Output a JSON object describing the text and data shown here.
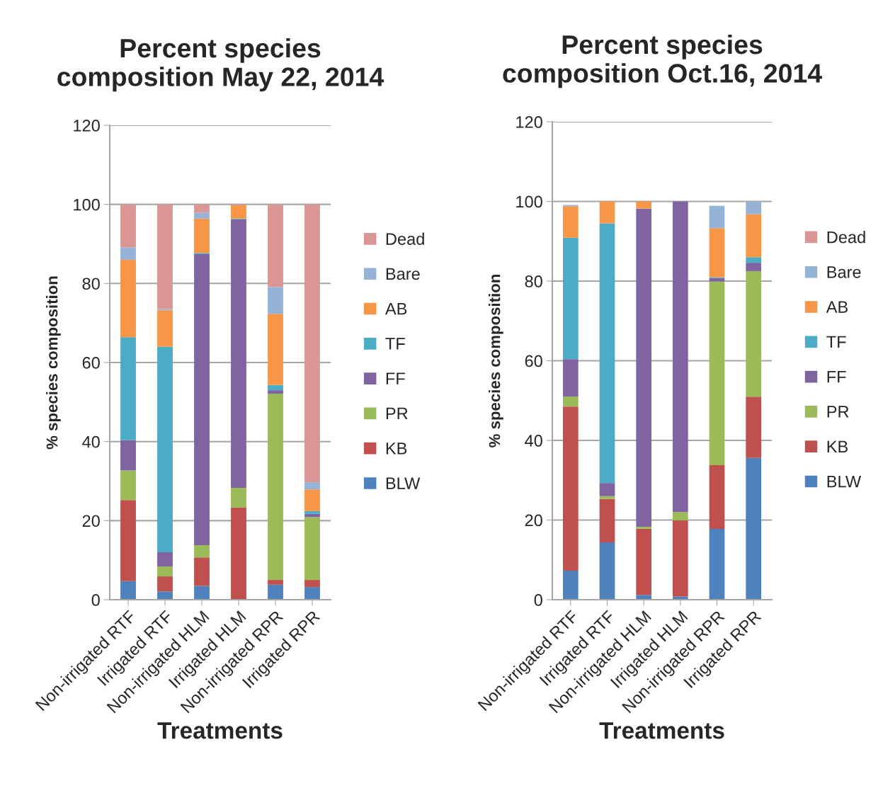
{
  "chart_data": [
    {
      "type": "bar",
      "stacked": true,
      "title": "Percent species\ncomposition May 22, 2014",
      "xlabel": "Treatments",
      "ylabel": "% species composition",
      "categories": [
        "Non-irrigated RTF",
        "Irrigated RTF",
        "Non-irrigated HLM",
        "Irrigated HLM",
        "Non-irrigated RPR",
        "Irrigated RPR"
      ],
      "ylim": [
        0,
        120
      ],
      "yticks": [
        0,
        20,
        40,
        60,
        80,
        100,
        120
      ],
      "grid": "y",
      "legend": "right",
      "series": [
        {
          "name": "BLW",
          "color": "#4f81bd",
          "values": [
            4.7,
            2.1,
            3.5,
            0,
            3.8,
            3.2
          ]
        },
        {
          "name": "KB",
          "color": "#c0504d",
          "values": [
            20.5,
            3.8,
            7.2,
            23.3,
            1.2,
            1.8
          ]
        },
        {
          "name": "PR",
          "color": "#9bbb59",
          "values": [
            7.5,
            2.5,
            3.1,
            5.0,
            47.1,
            15.9
          ]
        },
        {
          "name": "FF",
          "color": "#8064a2",
          "values": [
            7.7,
            3.6,
            73.6,
            67.9,
            0.9,
            0.8
          ]
        },
        {
          "name": "TF",
          "color": "#4bacc6",
          "values": [
            26.0,
            52.0,
            0.3,
            0.2,
            1.3,
            0.7
          ]
        },
        {
          "name": "AB",
          "color": "#f79646",
          "values": [
            19.6,
            9.2,
            8.7,
            3.4,
            18.0,
            5.5
          ]
        },
        {
          "name": "Bare",
          "color": "#95b3d7",
          "values": [
            3.1,
            0.3,
            1.5,
            0,
            6.8,
            1.8
          ]
        },
        {
          "name": "Dead",
          "color": "#d99694",
          "values": [
            10.9,
            26.5,
            2.1,
            0.2,
            20.9,
            70.3
          ]
        }
      ]
    },
    {
      "type": "bar",
      "stacked": true,
      "title": "Percent species\ncomposition Oct.16, 2014",
      "xlabel": "Treatments",
      "ylabel": "% species composition",
      "categories": [
        "Non-irrigated RTF",
        "Irrigated RTF",
        "Non-irrigated HLM",
        "Irrigated HLM",
        "Non-irrigated RPR",
        "Irrigated RPR"
      ],
      "ylim": [
        0,
        120
      ],
      "yticks": [
        0,
        20,
        40,
        60,
        80,
        100,
        120
      ],
      "grid": "y",
      "legend": "right",
      "series": [
        {
          "name": "BLW",
          "color": "#4f81bd",
          "values": [
            7.3,
            14.4,
            1.2,
            0.8,
            17.8,
            35.6
          ]
        },
        {
          "name": "KB",
          "color": "#c0504d",
          "values": [
            41.2,
            10.9,
            16.6,
            19.1,
            16.0,
            15.4
          ]
        },
        {
          "name": "PR",
          "color": "#9bbb59",
          "values": [
            2.5,
            0.7,
            0.5,
            2.1,
            46.1,
            31.5
          ]
        },
        {
          "name": "FF",
          "color": "#8064a2",
          "values": [
            9.4,
            3.3,
            79.9,
            78.0,
            0.9,
            2.1
          ]
        },
        {
          "name": "TF",
          "color": "#4bacc6",
          "values": [
            30.5,
            65.2,
            0,
            0,
            0.2,
            1.4
          ]
        },
        {
          "name": "AB",
          "color": "#f79646",
          "values": [
            7.9,
            5.5,
            1.8,
            0,
            12.3,
            10.8
          ]
        },
        {
          "name": "Bare",
          "color": "#95b3d7",
          "values": [
            0.3,
            0,
            0,
            0,
            5.6,
            3.1
          ]
        },
        {
          "name": "Dead",
          "color": "#d99694",
          "values": [
            0,
            0,
            0,
            0,
            0,
            0
          ]
        }
      ]
    }
  ]
}
